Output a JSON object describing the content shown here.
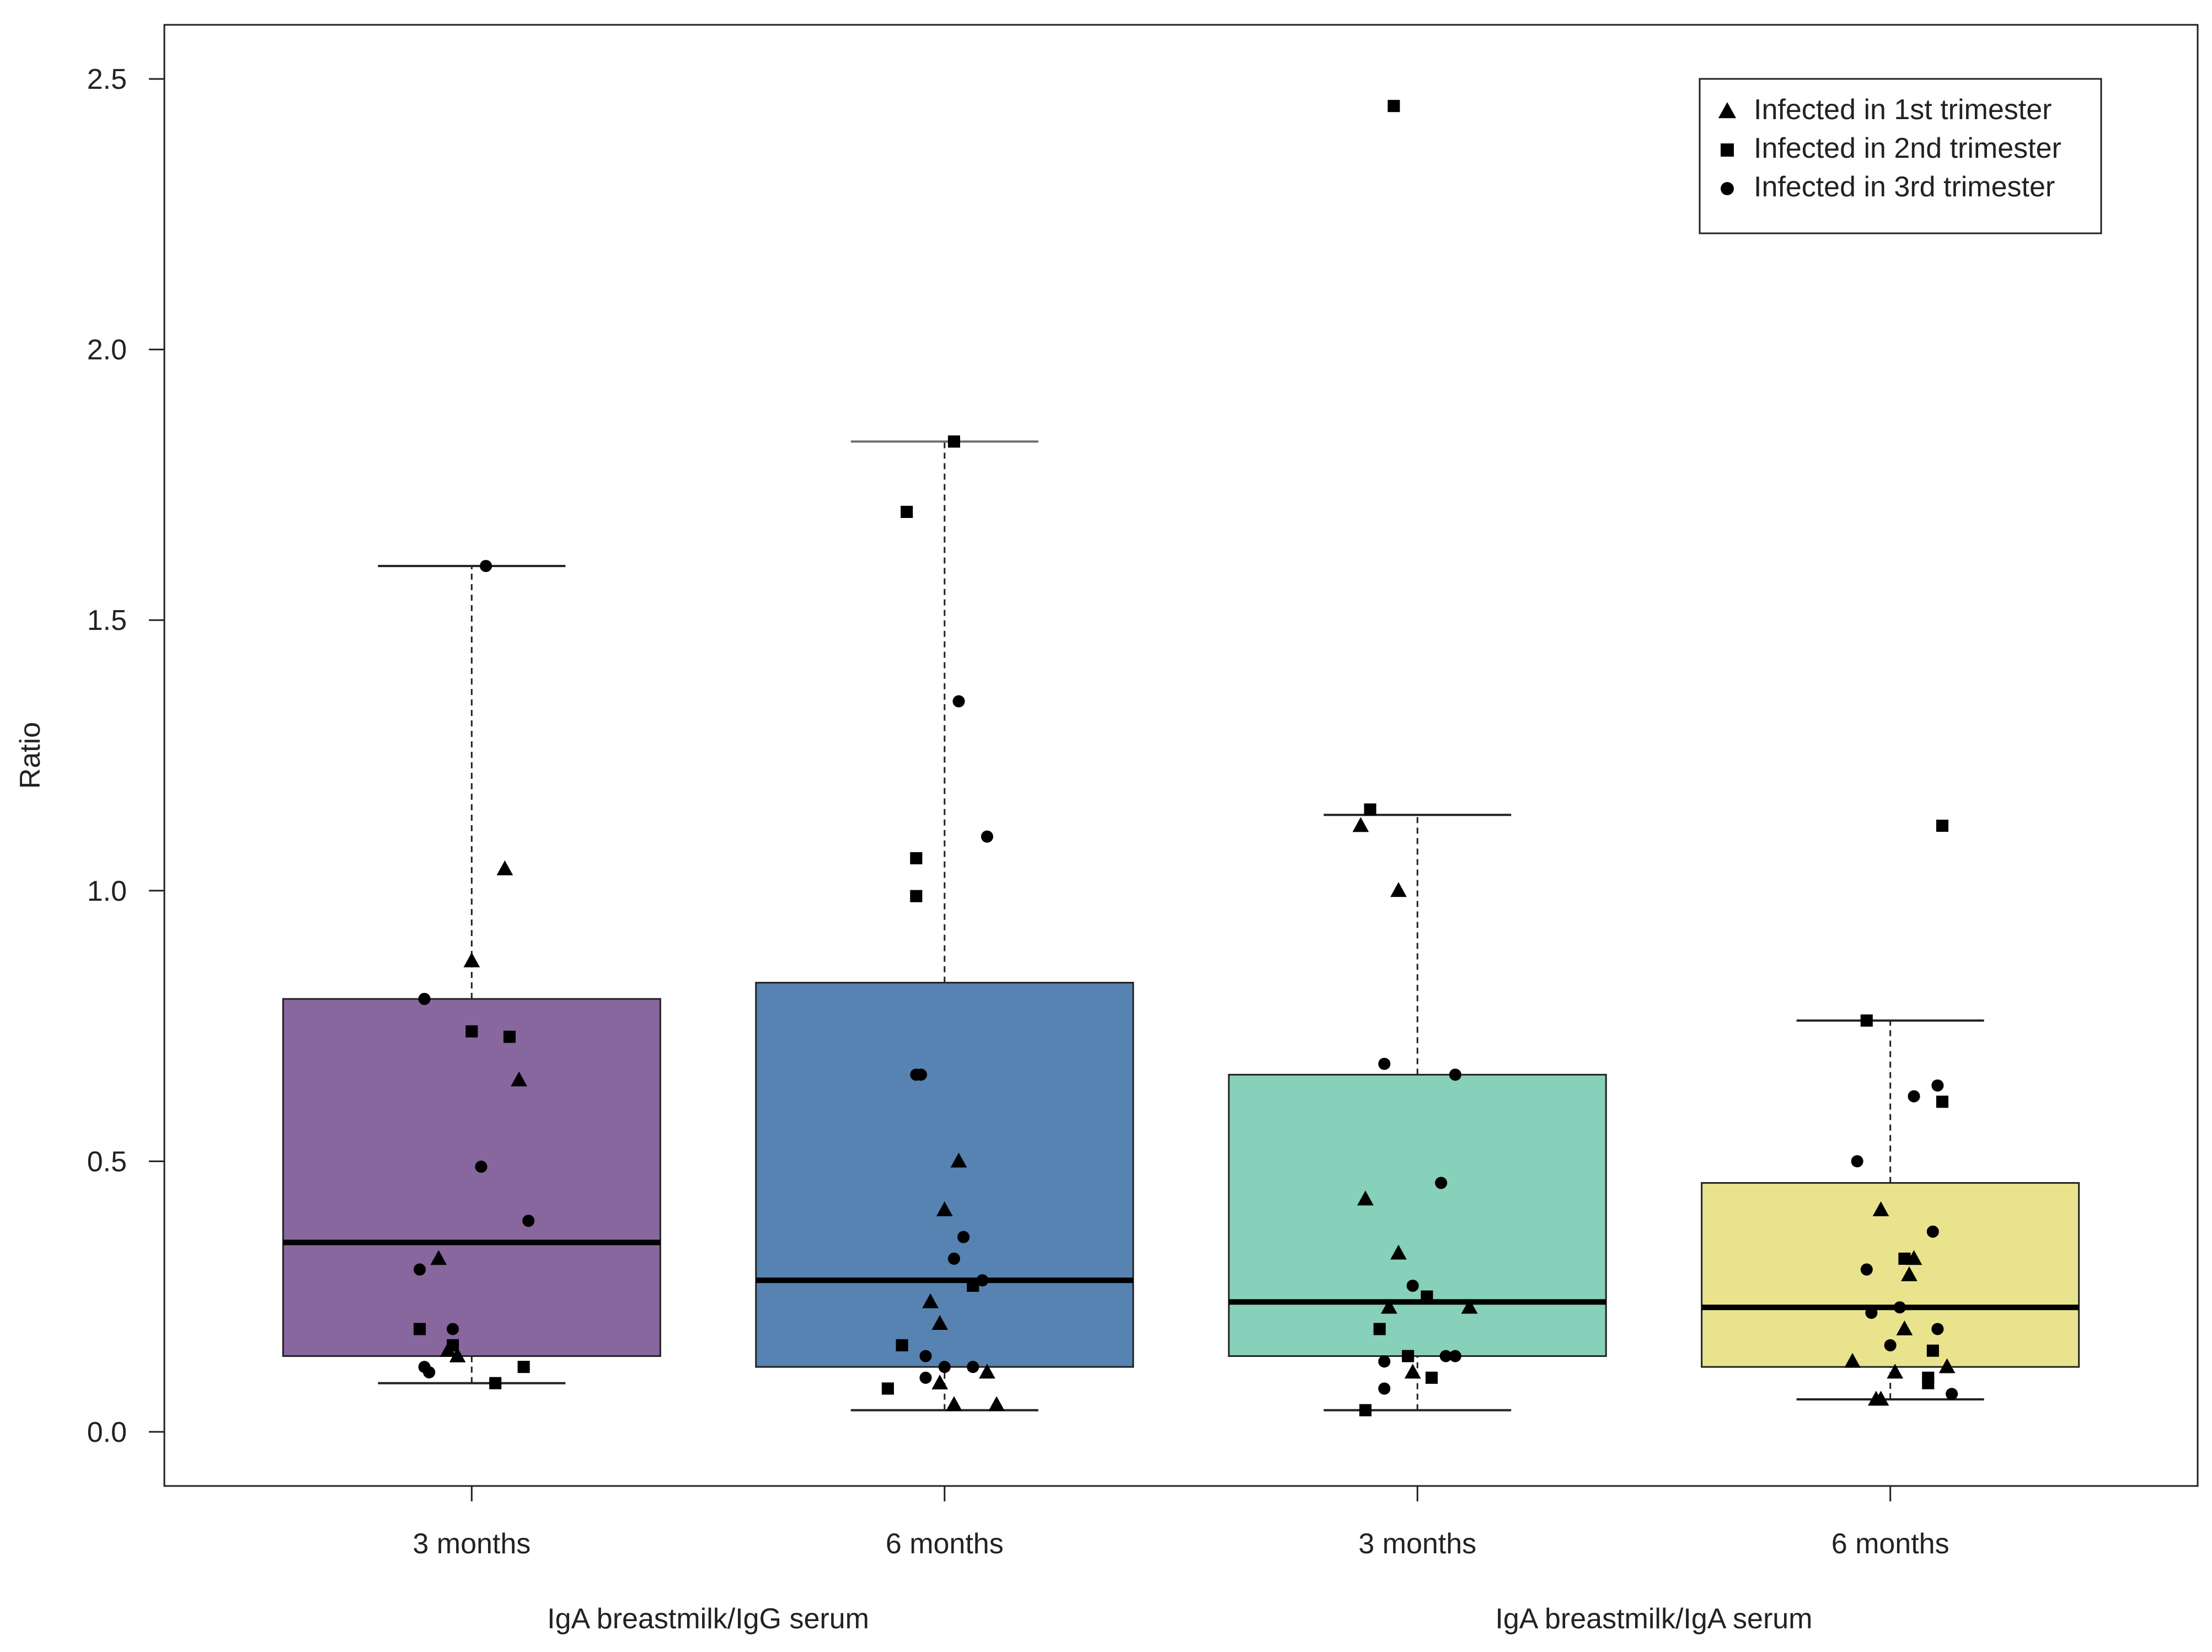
{
  "chart_data": {
    "type": "box",
    "ylabel": "Ratio",
    "ylim": [
      -0.1,
      2.6
    ],
    "yticks": [
      "0.0",
      "0.5",
      "1.0",
      "1.5",
      "2.0",
      "2.5"
    ],
    "xlim": [
      0.35,
      4.65
    ],
    "groups": [
      {
        "label": "IgA breastmilk/IgG serum",
        "span": [
          1,
          2
        ]
      },
      {
        "label": "IgA breastmilk/IgA serum",
        "span": [
          3,
          4
        ]
      }
    ],
    "legend": {
      "position": "top-right",
      "entries": [
        {
          "label": "Infected in 1st trimester",
          "marker": "triangle"
        },
        {
          "label": "Infected in 2nd trimester",
          "marker": "square"
        },
        {
          "label": "Infected in 3rd trimester",
          "marker": "circle"
        }
      ]
    },
    "boxes": [
      {
        "label": "3 months",
        "color": "#88679E",
        "q1": 0.14,
        "median": 0.35,
        "q3": 0.8,
        "whisker_low": 0.09,
        "whisker_high": 1.6,
        "points": [
          {
            "x": 1.03,
            "y": 1.6,
            "g": 3
          },
          {
            "x": 1.07,
            "y": 1.04,
            "g": 1
          },
          {
            "x": 1.0,
            "y": 0.87,
            "g": 1
          },
          {
            "x": 0.9,
            "y": 0.8,
            "g": 3
          },
          {
            "x": 1.0,
            "y": 0.74,
            "g": 2
          },
          {
            "x": 1.08,
            "y": 0.73,
            "g": 2
          },
          {
            "x": 1.1,
            "y": 0.65,
            "g": 1
          },
          {
            "x": 1.02,
            "y": 0.49,
            "g": 3
          },
          {
            "x": 1.12,
            "y": 0.39,
            "g": 3
          },
          {
            "x": 0.93,
            "y": 0.32,
            "g": 1
          },
          {
            "x": 0.89,
            "y": 0.3,
            "g": 3
          },
          {
            "x": 0.89,
            "y": 0.19,
            "g": 2
          },
          {
            "x": 0.96,
            "y": 0.19,
            "g": 3
          },
          {
            "x": 0.96,
            "y": 0.16,
            "g": 2
          },
          {
            "x": 0.95,
            "y": 0.15,
            "g": 1
          },
          {
            "x": 0.97,
            "y": 0.14,
            "g": 1
          },
          {
            "x": 1.11,
            "y": 0.12,
            "g": 2
          },
          {
            "x": 0.9,
            "y": 0.12,
            "g": 3
          },
          {
            "x": 0.91,
            "y": 0.11,
            "g": 3
          },
          {
            "x": 1.05,
            "y": 0.09,
            "g": 2
          }
        ]
      },
      {
        "label": "6 months",
        "color": "#5683B1",
        "q1": 0.12,
        "median": 0.28,
        "q3": 0.83,
        "whisker_low": 0.04,
        "whisker_high": 1.83,
        "points": [
          {
            "x": 2.02,
            "y": 1.83,
            "g": 2
          },
          {
            "x": 1.92,
            "y": 1.7,
            "g": 2
          },
          {
            "x": 2.03,
            "y": 1.35,
            "g": 3
          },
          {
            "x": 2.09,
            "y": 1.1,
            "g": 3
          },
          {
            "x": 1.94,
            "y": 1.06,
            "g": 2
          },
          {
            "x": 1.94,
            "y": 0.99,
            "g": 2
          },
          {
            "x": 1.94,
            "y": 0.66,
            "g": 3
          },
          {
            "x": 1.95,
            "y": 0.66,
            "g": 3
          },
          {
            "x": 2.03,
            "y": 0.5,
            "g": 1
          },
          {
            "x": 2.0,
            "y": 0.41,
            "g": 1
          },
          {
            "x": 2.04,
            "y": 0.36,
            "g": 3
          },
          {
            "x": 2.02,
            "y": 0.32,
            "g": 3
          },
          {
            "x": 2.08,
            "y": 0.28,
            "g": 3
          },
          {
            "x": 2.06,
            "y": 0.27,
            "g": 2
          },
          {
            "x": 1.97,
            "y": 0.24,
            "g": 1
          },
          {
            "x": 1.99,
            "y": 0.2,
            "g": 1
          },
          {
            "x": 1.91,
            "y": 0.16,
            "g": 2
          },
          {
            "x": 1.96,
            "y": 0.14,
            "g": 3
          },
          {
            "x": 2.0,
            "y": 0.12,
            "g": 3
          },
          {
            "x": 2.06,
            "y": 0.12,
            "g": 3
          },
          {
            "x": 2.09,
            "y": 0.11,
            "g": 1
          },
          {
            "x": 1.96,
            "y": 0.1,
            "g": 3
          },
          {
            "x": 1.99,
            "y": 0.09,
            "g": 1
          },
          {
            "x": 1.88,
            "y": 0.08,
            "g": 2
          },
          {
            "x": 2.02,
            "y": 0.05,
            "g": 1
          },
          {
            "x": 2.11,
            "y": 0.05,
            "g": 1
          }
        ]
      },
      {
        "label": "3 months",
        "color": "#87D0B9",
        "q1": 0.14,
        "median": 0.24,
        "q3": 0.66,
        "whisker_low": 0.04,
        "whisker_high": 1.14,
        "points": [
          {
            "x": 2.95,
            "y": 2.45,
            "g": 2
          },
          {
            "x": 2.9,
            "y": 1.15,
            "g": 2
          },
          {
            "x": 2.88,
            "y": 1.12,
            "g": 1
          },
          {
            "x": 2.96,
            "y": 1.0,
            "g": 1
          },
          {
            "x": 2.93,
            "y": 0.68,
            "g": 3
          },
          {
            "x": 3.08,
            "y": 0.66,
            "g": 3
          },
          {
            "x": 3.05,
            "y": 0.46,
            "g": 3
          },
          {
            "x": 2.89,
            "y": 0.43,
            "g": 1
          },
          {
            "x": 2.96,
            "y": 0.33,
            "g": 1
          },
          {
            "x": 2.99,
            "y": 0.27,
            "g": 3
          },
          {
            "x": 3.02,
            "y": 0.25,
            "g": 2
          },
          {
            "x": 3.11,
            "y": 0.23,
            "g": 1
          },
          {
            "x": 2.94,
            "y": 0.23,
            "g": 1
          },
          {
            "x": 2.92,
            "y": 0.19,
            "g": 2
          },
          {
            "x": 2.98,
            "y": 0.14,
            "g": 2
          },
          {
            "x": 3.08,
            "y": 0.14,
            "g": 3
          },
          {
            "x": 3.06,
            "y": 0.14,
            "g": 3
          },
          {
            "x": 2.93,
            "y": 0.13,
            "g": 3
          },
          {
            "x": 2.99,
            "y": 0.11,
            "g": 1
          },
          {
            "x": 3.03,
            "y": 0.1,
            "g": 2
          },
          {
            "x": 2.93,
            "y": 0.08,
            "g": 3
          },
          {
            "x": 2.89,
            "y": 0.04,
            "g": 2
          }
        ]
      },
      {
        "label": "6 months",
        "color": "#E9E38E",
        "q1": 0.12,
        "median": 0.23,
        "q3": 0.46,
        "whisker_low": 0.06,
        "whisker_high": 0.76,
        "points": [
          {
            "x": 4.11,
            "y": 1.12,
            "g": 2
          },
          {
            "x": 3.95,
            "y": 0.76,
            "g": 2
          },
          {
            "x": 4.1,
            "y": 0.64,
            "g": 3
          },
          {
            "x": 4.05,
            "y": 0.62,
            "g": 3
          },
          {
            "x": 4.11,
            "y": 0.61,
            "g": 2
          },
          {
            "x": 3.93,
            "y": 0.5,
            "g": 3
          },
          {
            "x": 3.98,
            "y": 0.41,
            "g": 1
          },
          {
            "x": 4.09,
            "y": 0.37,
            "g": 3
          },
          {
            "x": 4.03,
            "y": 0.32,
            "g": 2
          },
          {
            "x": 4.05,
            "y": 0.32,
            "g": 1
          },
          {
            "x": 3.95,
            "y": 0.3,
            "g": 3
          },
          {
            "x": 4.04,
            "y": 0.29,
            "g": 1
          },
          {
            "x": 4.02,
            "y": 0.23,
            "g": 3
          },
          {
            "x": 3.96,
            "y": 0.22,
            "g": 3
          },
          {
            "x": 4.1,
            "y": 0.19,
            "g": 3
          },
          {
            "x": 4.03,
            "y": 0.19,
            "g": 1
          },
          {
            "x": 4.0,
            "y": 0.16,
            "g": 3
          },
          {
            "x": 4.09,
            "y": 0.15,
            "g": 2
          },
          {
            "x": 3.92,
            "y": 0.13,
            "g": 1
          },
          {
            "x": 4.12,
            "y": 0.12,
            "g": 1
          },
          {
            "x": 4.01,
            "y": 0.11,
            "g": 1
          },
          {
            "x": 4.08,
            "y": 0.1,
            "g": 2
          },
          {
            "x": 4.08,
            "y": 0.09,
            "g": 2
          },
          {
            "x": 4.13,
            "y": 0.07,
            "g": 3
          },
          {
            "x": 3.98,
            "y": 0.06,
            "g": 1
          },
          {
            "x": 3.97,
            "y": 0.06,
            "g": 1
          }
        ]
      }
    ]
  }
}
